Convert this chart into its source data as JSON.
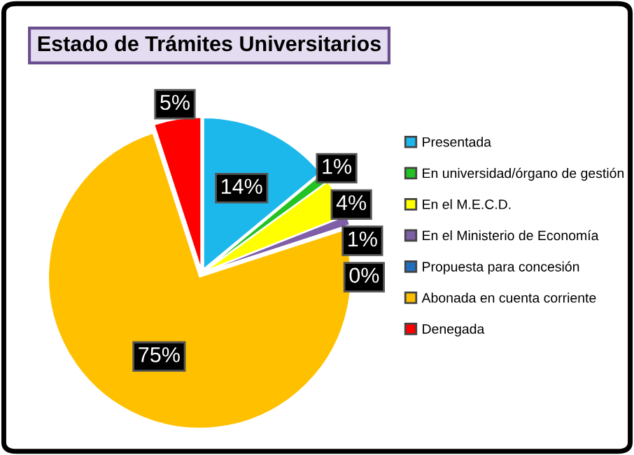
{
  "chart_data": {
    "type": "pie",
    "title": "Estado de Trámites Universitarios",
    "categories": [
      "Presentada",
      "En universidad/órgano de gestión",
      "En el M.E.C.D.",
      "En el Ministerio de Economía",
      "Propuesta para concesión",
      "Abonada en cuenta corriente",
      "Denegada"
    ],
    "values": [
      14,
      1,
      4,
      1,
      0,
      75,
      5
    ],
    "value_labels": [
      "14%",
      "1%",
      "4%",
      "1%",
      "0%",
      "75%",
      "5%"
    ],
    "colors": [
      "#1cb8ec",
      "#22c322",
      "#ffff00",
      "#7f5fa8",
      "#1f6fbf",
      "#ffc000",
      "#ff0000"
    ],
    "legend": "right"
  }
}
